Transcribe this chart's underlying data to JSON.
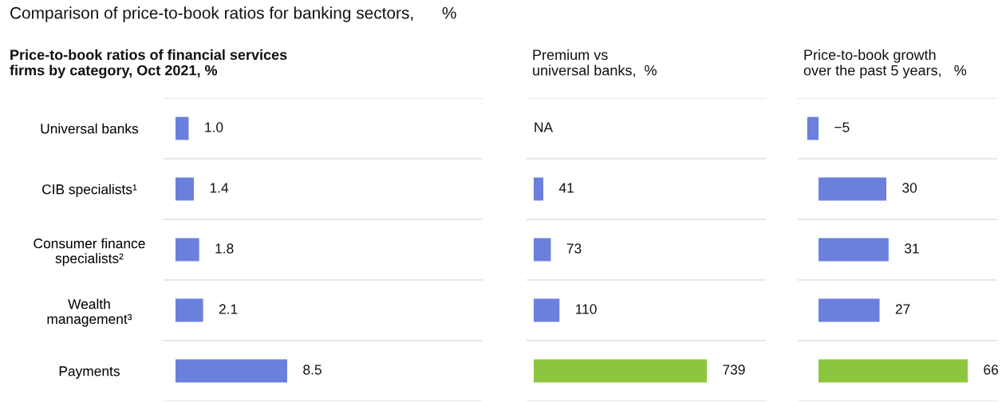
{
  "chart_data": [
    {
      "type": "bar",
      "orientation": "horizontal",
      "title": "Comparison of price-to-book ratios for banking sectors,      %",
      "subtitle": "Price-to-book ratios of financial services\nfirms by category, Oct 2021, %",
      "categories": [
        "Universal banks",
        "CIB specialists¹",
        "Consumer finance\nspecialists²",
        "Wealth\nmanagement³",
        "Payments"
      ],
      "values": [
        1.0,
        1.4,
        1.8,
        2.1,
        8.5
      ],
      "value_labels": [
        "1.0",
        "1.4",
        "1.8",
        "2.1",
        "8.5"
      ],
      "colors": [
        "#6a80dc",
        "#6a80dc",
        "#6a80dc",
        "#6a80dc",
        "#6a80dc"
      ],
      "tick_labels": "y",
      "grid": "y"
    },
    {
      "type": "bar",
      "orientation": "horizontal",
      "title": "Premium vs\nuniversal banks,  %",
      "values": [
        null,
        41,
        73,
        110,
        739
      ],
      "value_labels": [
        "NA",
        "41",
        "73",
        "110",
        "739"
      ],
      "colors": [
        "#6a80dc",
        "#6a80dc",
        "#6a80dc",
        "#6a80dc",
        "#8cc63e"
      ],
      "tick_labels": false,
      "grid": "y"
    },
    {
      "type": "bar",
      "orientation": "horizontal",
      "title": "Price-to-book growth\nover the past 5 years,   %",
      "values": [
        -5,
        30,
        31,
        27,
        66
      ],
      "value_labels": [
        "−5",
        "30",
        "31",
        "27",
        "66"
      ],
      "colors": [
        "#6a80dc",
        "#6a80dc",
        "#6a80dc",
        "#6a80dc",
        "#8cc63e"
      ],
      "tick_labels": false,
      "grid": "y"
    }
  ]
}
